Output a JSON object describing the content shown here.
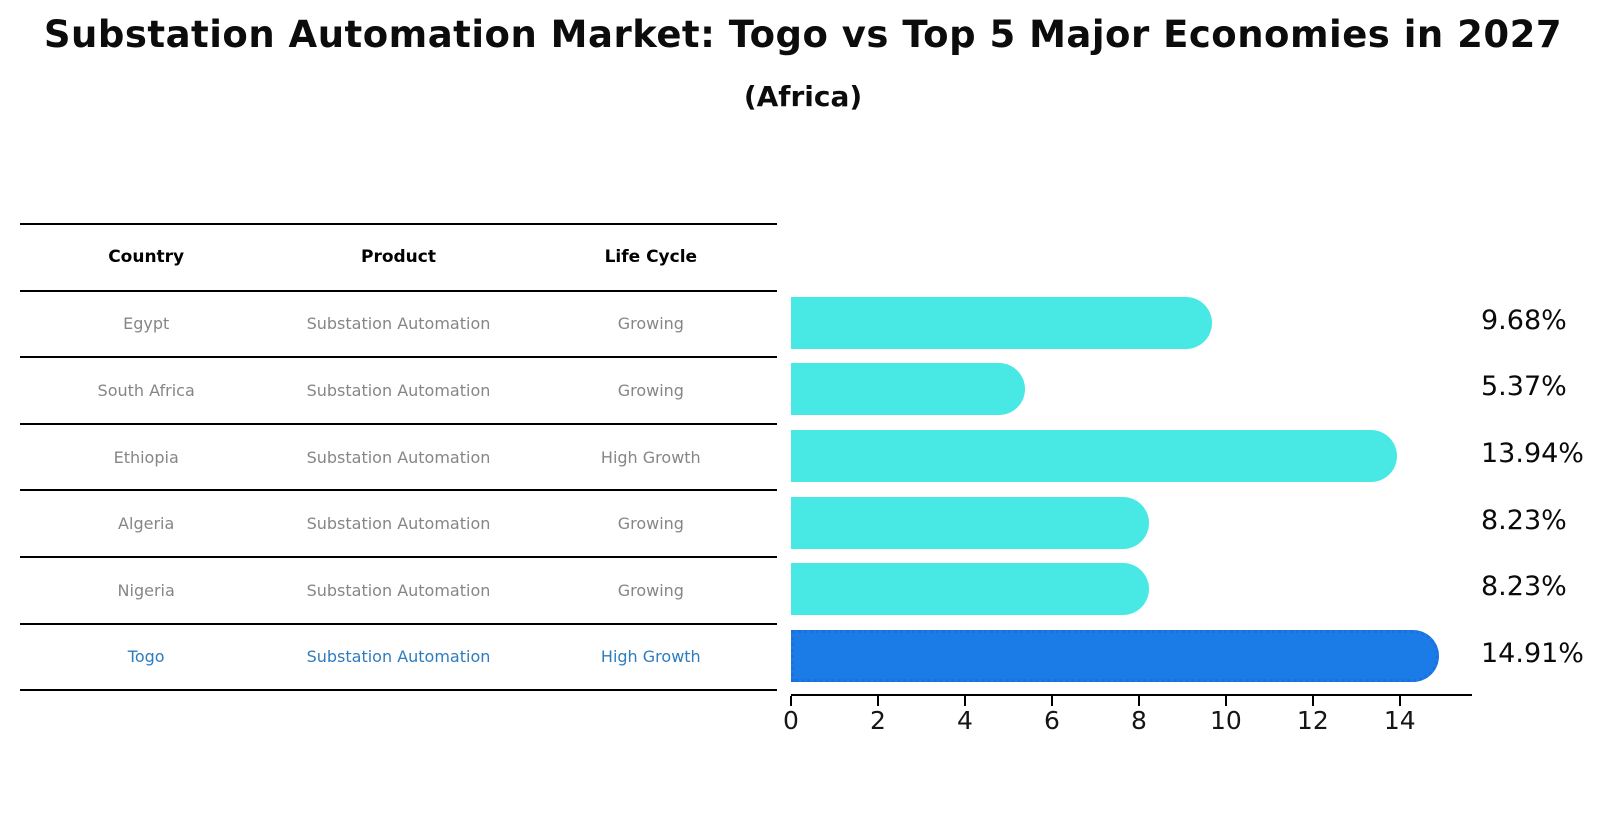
{
  "title": "Substation Automation Market: Togo vs Top 5 Major Economies in 2027",
  "subtitle": "(Africa)",
  "table": {
    "headers": [
      "Country",
      "Product",
      "Life Cycle"
    ],
    "rows": [
      {
        "country": "Egypt",
        "product": "Substation Automation",
        "life_cycle": "Growing",
        "highlighted": false
      },
      {
        "country": "South Africa",
        "product": "Substation Automation",
        "life_cycle": "Growing",
        "highlighted": false
      },
      {
        "country": "Ethiopia",
        "product": "Substation Automation",
        "life_cycle": "High Growth",
        "highlighted": false
      },
      {
        "country": "Algeria",
        "product": "Substation Automation",
        "life_cycle": "Growing",
        "highlighted": false
      },
      {
        "country": "Nigeria",
        "product": "Substation Automation",
        "life_cycle": "Growing",
        "highlighted": false
      },
      {
        "country": "Togo",
        "product": "Substation Automation",
        "life_cycle": "High Growth",
        "highlighted": true
      }
    ]
  },
  "chart_data": {
    "type": "bar",
    "orientation": "horizontal",
    "title": "Substation Automation Market: Togo vs Top 5 Major Economies in 2027",
    "subtitle": "(Africa)",
    "categories": [
      "Egypt",
      "South Africa",
      "Ethiopia",
      "Algeria",
      "Nigeria",
      "Togo"
    ],
    "values": [
      9.68,
      5.37,
      13.94,
      8.23,
      8.23,
      14.91
    ],
    "value_labels": [
      "9.68%",
      "5.37%",
      "13.94%",
      "8.23%",
      "8.23%",
      "14.91%"
    ],
    "highlight_index": 5,
    "xlim": [
      0,
      15.66
    ],
    "xticks": [
      0,
      2,
      4,
      6,
      8,
      10,
      12,
      14
    ],
    "grid": false,
    "legend": "none",
    "bar_color": "#48E8E4",
    "highlight_bar_color": "#1B7CE8",
    "highlight_edge_color": "#1E6FD9",
    "highlight_text_color": "#2E7CBE"
  }
}
